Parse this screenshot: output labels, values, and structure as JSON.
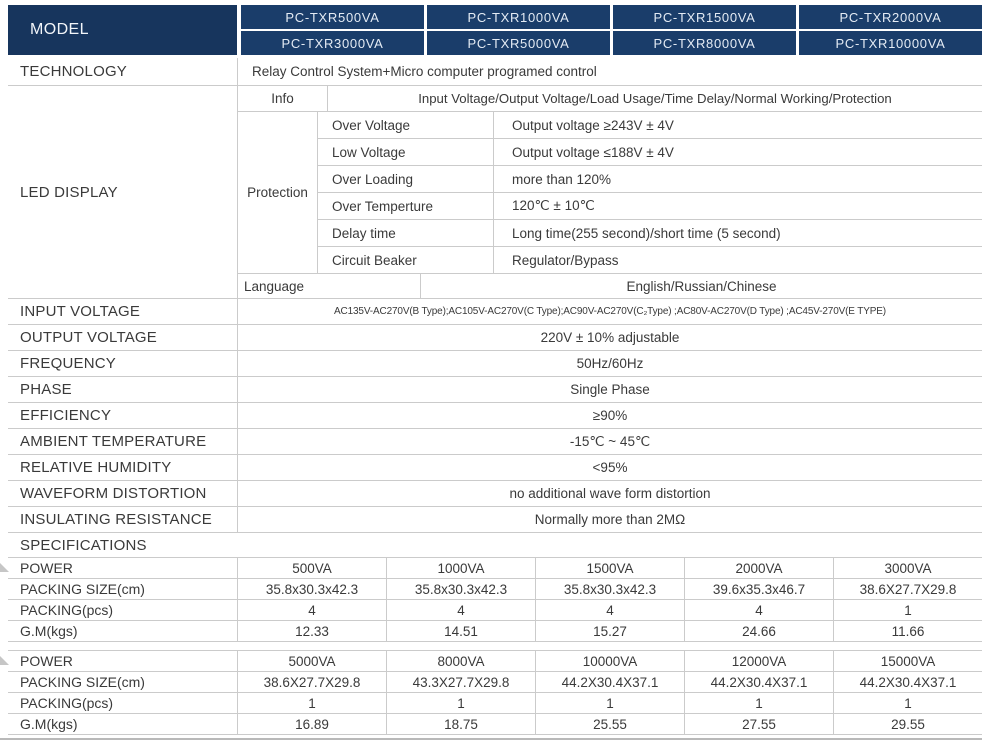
{
  "colors": {
    "header_navy": "#17355d",
    "model_cell_navy": "#1a3d6a",
    "grid_line": "#cbcbcb",
    "text": "#3a3a3a",
    "bottom_rule": "#b9b9b9"
  },
  "header": {
    "model_label": "MODEL",
    "columns": [
      {
        "row1": "PC-TXR500VA",
        "row2": "PC-TXR3000VA"
      },
      {
        "row1": "PC-TXR1000VA",
        "row2": "PC-TXR5000VA"
      },
      {
        "row1": "PC-TXR1500VA",
        "row2": "PC-TXR8000VA"
      },
      {
        "row1": "PC-TXR2000VA",
        "row2": "PC-TXR10000VA"
      }
    ]
  },
  "technology": {
    "label": "TECHNOLOGY",
    "value": "Relay Control System+Micro computer programed control"
  },
  "led_display": {
    "label": "LED DISPLAY",
    "info": {
      "label": "Info",
      "value": "Input Voltage/Output Voltage/Load Usage/Time Delay/Normal Working/Protection"
    },
    "protection": {
      "label": "Protection",
      "rows": [
        {
          "name": "Over Voltage",
          "value": "Output voltage ≥243V ± 4V"
        },
        {
          "name": "Low Voltage",
          "value": "Output voltage ≤188V ± 4V"
        },
        {
          "name": "Over Loading",
          "value": "more than 120%"
        },
        {
          "name": "Over Temperture",
          "value": "120℃ ± 10℃"
        },
        {
          "name": "Delay time",
          "value": "Long time(255 second)/short time (5 second)"
        },
        {
          "name": "Circuit Beaker",
          "value": "Regulator/Bypass"
        }
      ]
    },
    "language": {
      "label": "Language",
      "value": "English/Russian/Chinese"
    }
  },
  "spec_rows": [
    {
      "label": "INPUT VOLTAGE",
      "value": "AC135V-AC270V(B Type);AC105V-AC270V(C Type);AC90V-AC270V(C₂Type) ;AC80V-AC270V(D Type) ;AC45V-270V(E TYPE)"
    },
    {
      "label": "OUTPUT VOLTAGE",
      "value": "220V ± 10%  adjustable"
    },
    {
      "label": "FREQUENCY",
      "value": "50Hz/60Hz"
    },
    {
      "label": "PHASE",
      "value": "Single Phase"
    },
    {
      "label": "EFFICIENCY",
      "value": "≥90%"
    },
    {
      "label": "AMBIENT TEMPERATURE",
      "value": "-15℃ ~ 45℃"
    },
    {
      "label": "RELATIVE HUMIDITY",
      "value": "<95%"
    },
    {
      "label": "WAVEFORM DISTORTION",
      "value": "no additional wave form distortion"
    },
    {
      "label": "INSULATING RESISTANCE",
      "value": "Normally more than 2MΩ"
    }
  ],
  "specifications_label": "SPECIFICATIONS",
  "packing_tables": [
    {
      "rows": [
        {
          "label": "POWER",
          "values": [
            "500VA",
            "1000VA",
            "1500VA",
            "2000VA",
            "3000VA"
          ]
        },
        {
          "label": "PACKING SIZE(cm)",
          "values": [
            "35.8x30.3x42.3",
            "35.8x30.3x42.3",
            "35.8x30.3x42.3",
            "39.6x35.3x46.7",
            "38.6X27.7X29.8"
          ]
        },
        {
          "label": "PACKING(pcs)",
          "values": [
            "4",
            "4",
            "4",
            "4",
            "1"
          ]
        },
        {
          "label": "G.M(kgs)",
          "values": [
            "12.33",
            "14.51",
            "15.27",
            "24.66",
            "11.66"
          ]
        }
      ]
    },
    {
      "rows": [
        {
          "label": "POWER",
          "values": [
            "5000VA",
            "8000VA",
            "10000VA",
            "12000VA",
            "15000VA"
          ]
        },
        {
          "label": "PACKING SIZE(cm)",
          "values": [
            "38.6X27.7X29.8",
            "43.3X27.7X29.8",
            "44.2X30.4X37.1",
            "44.2X30.4X37.1",
            "44.2X30.4X37.1"
          ]
        },
        {
          "label": "PACKING(pcs)",
          "values": [
            "1",
            "1",
            "1",
            "1",
            "1"
          ]
        },
        {
          "label": "G.M(kgs)",
          "values": [
            "16.89",
            "18.75",
            "25.55",
            "27.55",
            "29.55"
          ]
        }
      ]
    }
  ]
}
